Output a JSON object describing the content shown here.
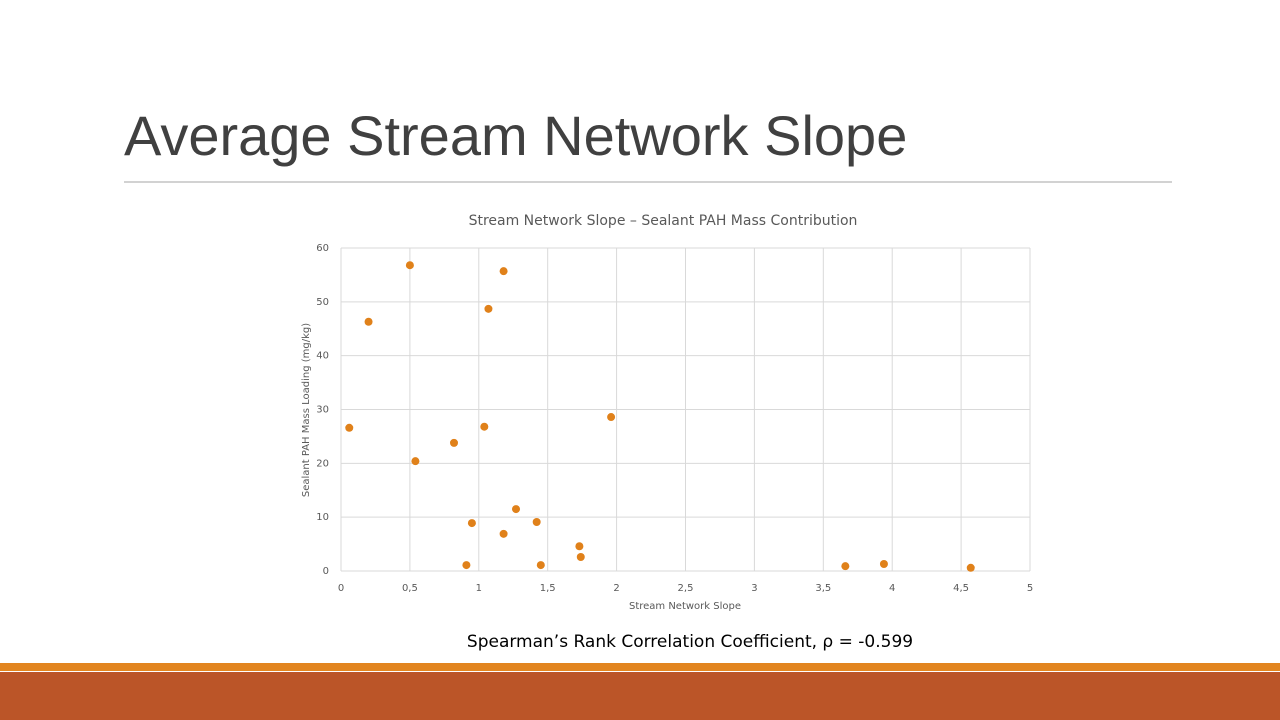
{
  "title": "Average Stream Network Slope",
  "caption": "Spearman’s Rank Correlation Coefficient, ρ = -0.599",
  "chart_data": {
    "type": "scatter",
    "title": "Stream Network Slope – Sealant PAH Mass Contribution",
    "x_label": "Stream Network Slope",
    "y_label": "Sealant PAH Mass Loading (mg/kg)",
    "x": [
      0.06,
      0.2,
      0.5,
      0.54,
      0.82,
      0.91,
      0.95,
      1.04,
      1.07,
      1.18,
      1.18,
      1.27,
      1.42,
      1.45,
      1.73,
      1.74,
      1.96,
      3.66,
      3.94,
      4.57
    ],
    "values": [
      26.6,
      46.3,
      56.8,
      20.4,
      23.8,
      1.1,
      8.9,
      26.8,
      48.7,
      6.9,
      55.7,
      11.5,
      9.1,
      1.1,
      4.6,
      2.6,
      28.6,
      0.9,
      1.3,
      0.6
    ],
    "color": "#e0811a",
    "xlim": [
      0,
      5
    ],
    "ylim": [
      0,
      60
    ],
    "xticks": [
      0,
      {
        "value": 0.5,
        "label": "0,5"
      },
      1,
      {
        "value": 1.5,
        "label": "1,5"
      },
      2,
      {
        "value": 2.5,
        "label": "2,5"
      },
      3,
      {
        "value": 3.5,
        "label": "3,5"
      },
      4,
      {
        "value": 4.5,
        "label": "4,5"
      },
      5
    ],
    "yticks": [
      0,
      10,
      20,
      30,
      40,
      50,
      60
    ],
    "grid": true
  }
}
